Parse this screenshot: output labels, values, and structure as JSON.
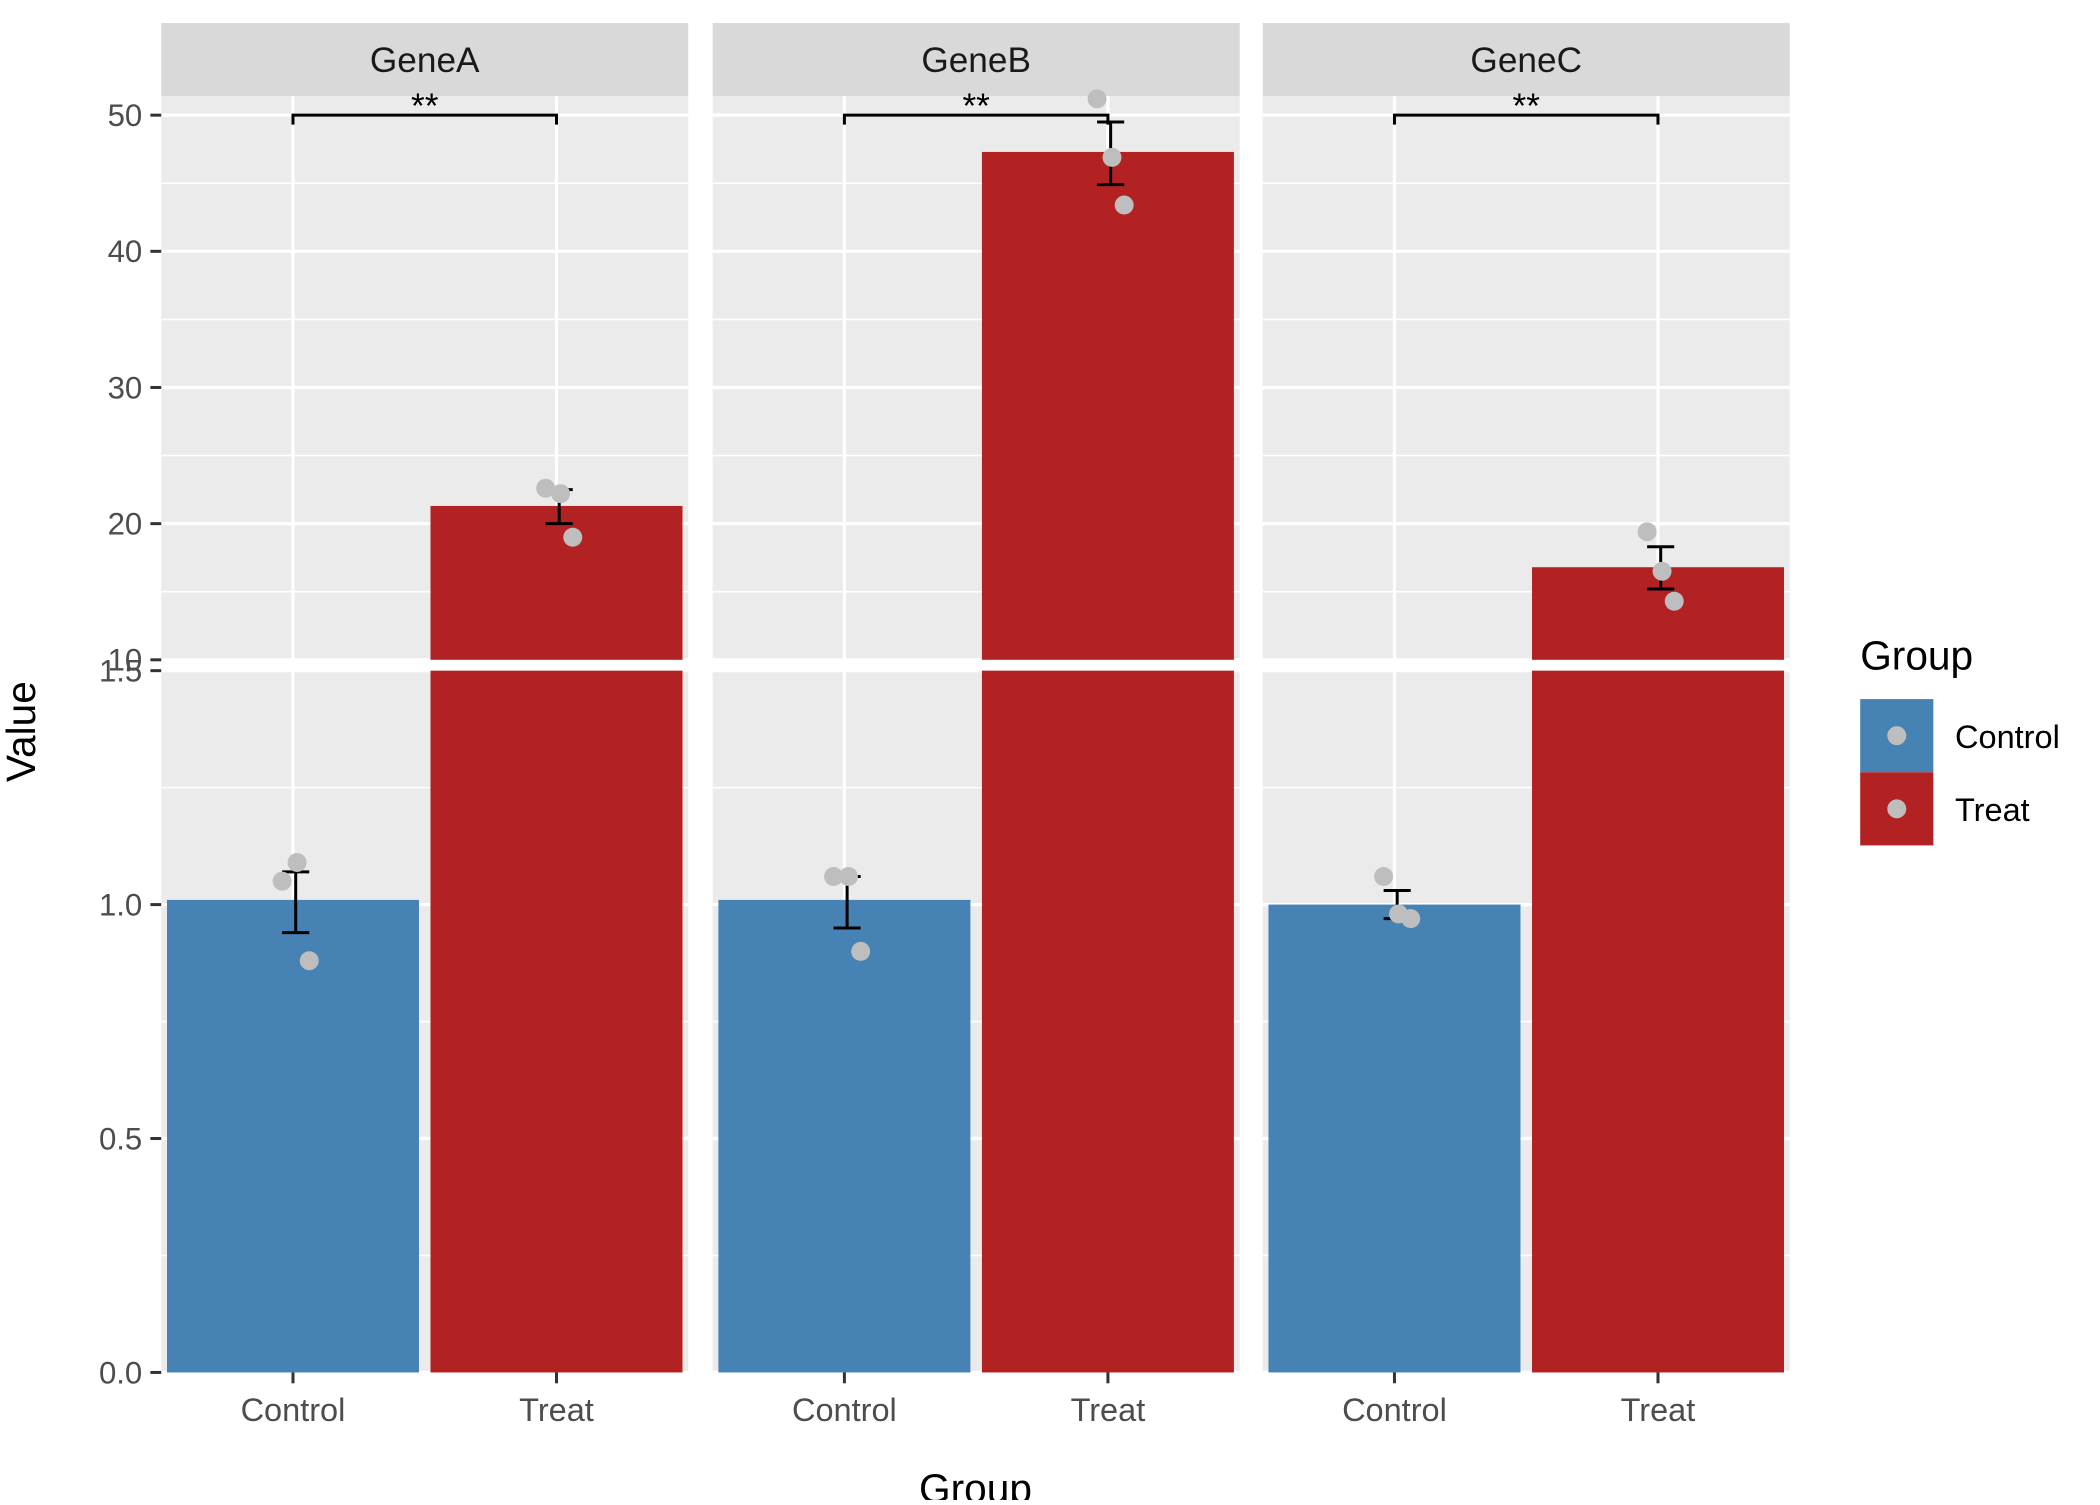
{
  "chart_data": {
    "type": "bar",
    "title": "",
    "xlabel": "Group",
    "ylabel": "Value",
    "categories": [
      "Control",
      "Treat"
    ],
    "facets": [
      {
        "name": "GeneA",
        "bars": [
          {
            "group": "Control",
            "mean": 1.01,
            "error_low": 0.94,
            "error_high": 1.07,
            "points": [
              1.05,
              1.09,
              0.88
            ]
          },
          {
            "group": "Treat",
            "mean": 21.3,
            "error_low": 20.0,
            "error_high": 22.5,
            "points": [
              22.6,
              22.2,
              19.0
            ]
          }
        ],
        "significance": "**"
      },
      {
        "name": "GeneB",
        "bars": [
          {
            "group": "Control",
            "mean": 1.01,
            "error_low": 0.95,
            "error_high": 1.06,
            "points": [
              1.06,
              1.06,
              0.9
            ]
          },
          {
            "group": "Treat",
            "mean": 47.3,
            "error_low": 44.9,
            "error_high": 49.5,
            "points": [
              51.2,
              46.9,
              43.4
            ]
          }
        ],
        "significance": "**"
      },
      {
        "name": "GeneC",
        "bars": [
          {
            "group": "Control",
            "mean": 1.0,
            "error_low": 0.97,
            "error_high": 1.03,
            "points": [
              1.06,
              0.98,
              0.97
            ]
          },
          {
            "group": "Treat",
            "mean": 16.8,
            "error_low": 15.2,
            "error_high": 18.3,
            "points": [
              19.4,
              16.5,
              14.3
            ]
          }
        ],
        "significance": "**"
      }
    ],
    "y_axis_lower": {
      "range": [
        0,
        1.5
      ],
      "ticks": [
        "0.0",
        "0.5",
        "1.0",
        "1.5"
      ],
      "tick_values": [
        0,
        0.5,
        1.0,
        1.5
      ]
    },
    "y_axis_upper": {
      "range": [
        10,
        50
      ],
      "ticks": [
        "10",
        "20",
        "30",
        "40",
        "50"
      ],
      "tick_values": [
        10,
        20,
        30,
        40,
        50
      ]
    },
    "legend": {
      "title": "Group",
      "position": "right",
      "items": [
        {
          "label": "Control",
          "color": "#4682B4"
        },
        {
          "label": "Treat",
          "color": "#B22222"
        }
      ]
    },
    "colors": {
      "Control": "#4682B4",
      "Treat": "#B22222",
      "panel_background": "#EBEBEB",
      "strip_background": "#D9D9D9",
      "grid": "#FFFFFF",
      "points": "#BEBEBE"
    }
  }
}
